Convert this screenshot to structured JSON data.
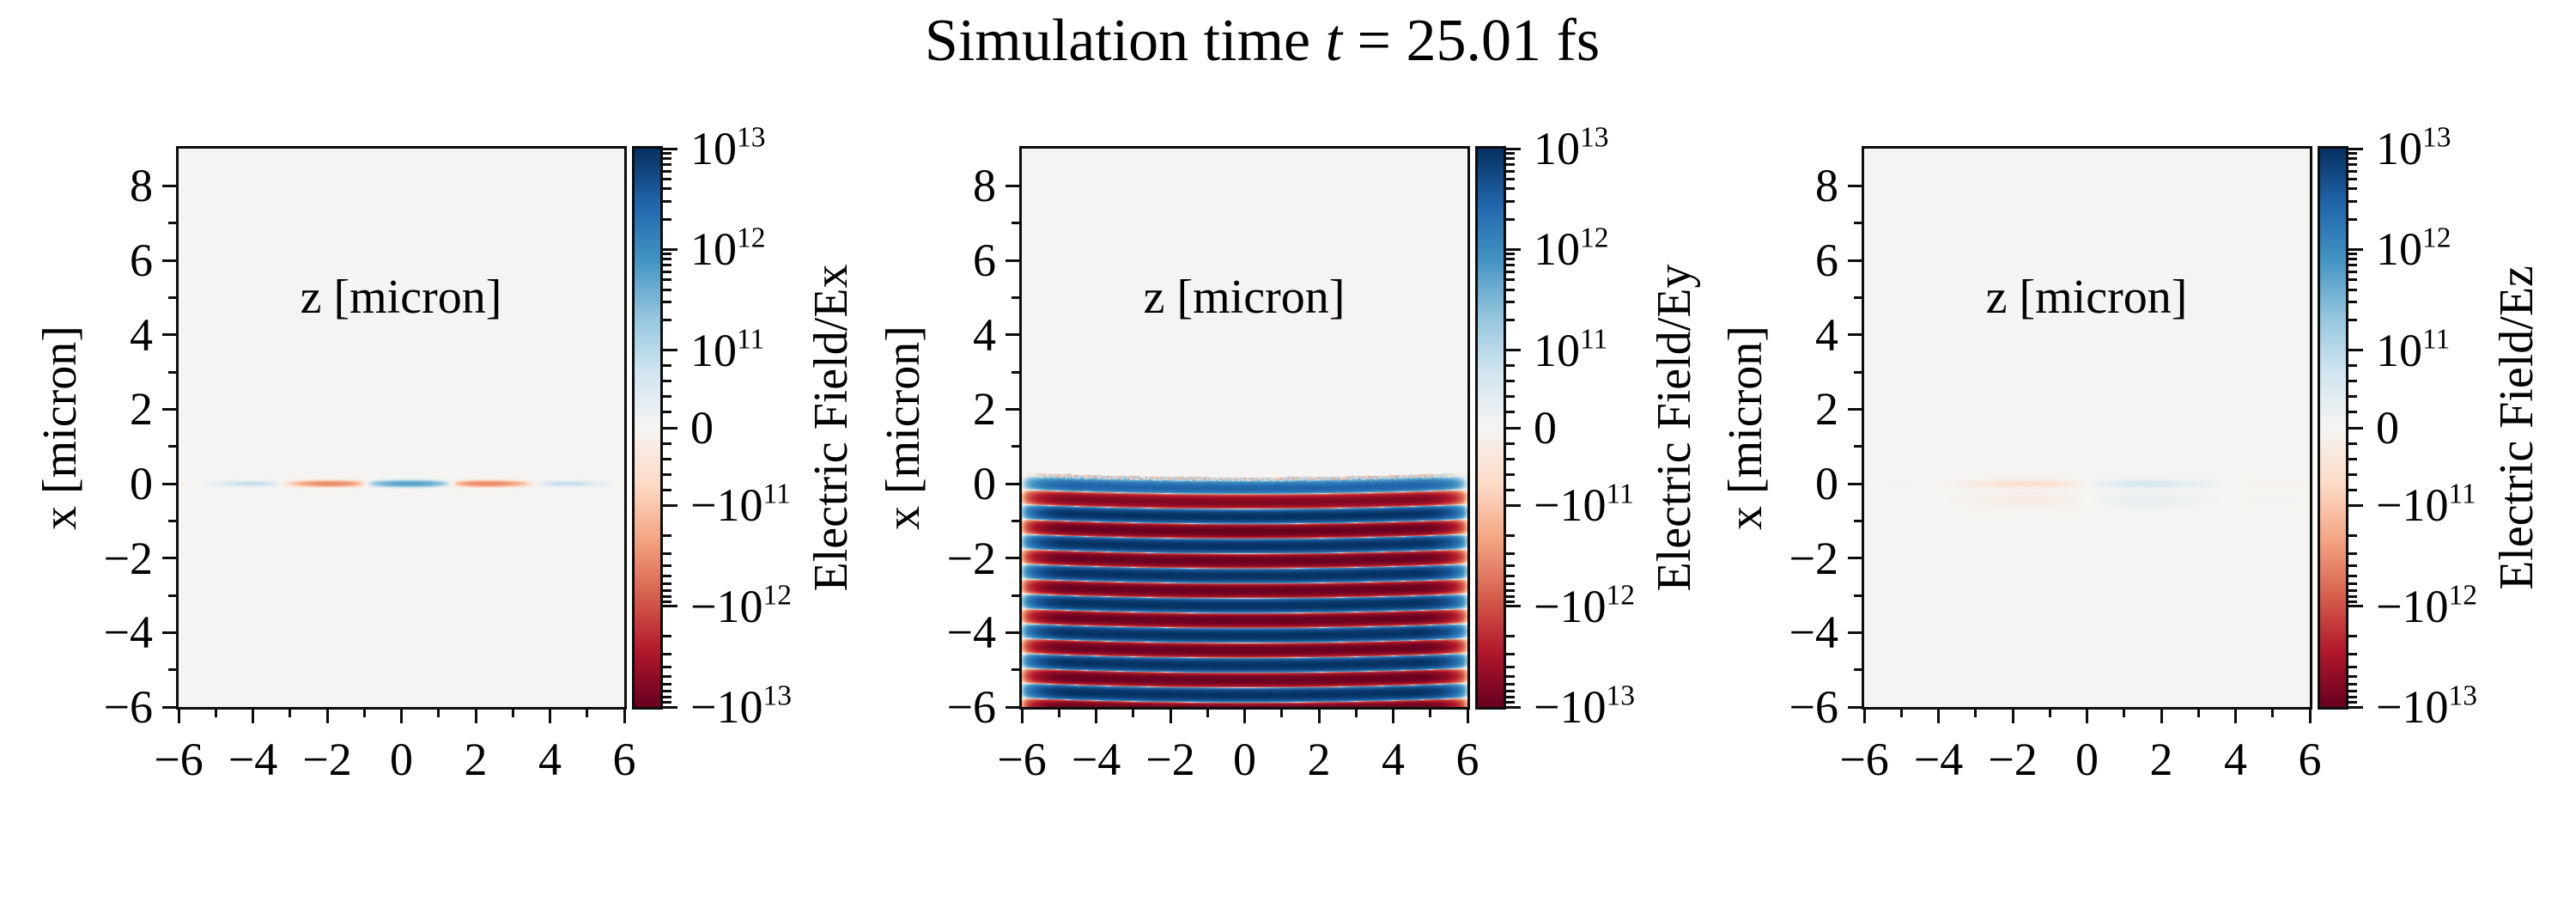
{
  "title": {
    "prefix": "Simulation time ",
    "variable": "t",
    "suffix": " = 25.01 fs"
  },
  "chart_data": {
    "type": "heatmap",
    "suptitle": "Simulation time t = 25.01 fs",
    "layout": "three horizontal pcolormesh subplots sharing axis ranges, each with its own symlog colorbar",
    "colormap": {
      "name": "RdBu",
      "stops_low_to_high": [
        "#67001f",
        "#b2182b",
        "#d6604d",
        "#f4a582",
        "#fddbc7",
        "#f5f4f2",
        "#d1e5f0",
        "#92c5de",
        "#4393c3",
        "#2166ac",
        "#053061"
      ]
    },
    "norm": {
      "type": "symlog",
      "vmin": -10000000000000.0,
      "vmax": 10000000000000.0,
      "linthresh": 100000000000.0,
      "linear_frac": 0.278,
      "decade_frac": 0.361
    },
    "axes": {
      "xlabel": "z [micron]",
      "ylabel": "x [micron]",
      "xlim": [
        -6,
        6
      ],
      "ylim": [
        -6,
        9
      ],
      "xticks": [
        {
          "v": -6,
          "label": "−6"
        },
        {
          "v": -4,
          "label": "−4"
        },
        {
          "v": -2,
          "label": "−2"
        },
        {
          "v": 0,
          "label": "0"
        },
        {
          "v": 2,
          "label": "2"
        },
        {
          "v": 4,
          "label": "4"
        },
        {
          "v": 6,
          "label": "6"
        }
      ],
      "xminor": [
        -5,
        -3,
        -1,
        1,
        3,
        5
      ],
      "yticks": [
        {
          "v": 8,
          "label": "8"
        },
        {
          "v": 6,
          "label": "6"
        },
        {
          "v": 4,
          "label": "4"
        },
        {
          "v": 2,
          "label": "2"
        },
        {
          "v": 0,
          "label": "0"
        },
        {
          "v": -2,
          "label": "−2"
        },
        {
          "v": -4,
          "label": "−4"
        },
        {
          "v": -6,
          "label": "−6"
        }
      ],
      "yminor": [
        9,
        7,
        5,
        3,
        1,
        -1,
        -3,
        -5
      ]
    },
    "colorbar_ticks": [
      {
        "frac": 0.0,
        "neg": false,
        "mant": "10",
        "exp": "13"
      },
      {
        "frac": 0.1805,
        "neg": false,
        "mant": "10",
        "exp": "12"
      },
      {
        "frac": 0.361,
        "neg": false,
        "mant": "10",
        "exp": "11"
      },
      {
        "frac": 0.5,
        "neg": false,
        "mant": "0",
        "exp": ""
      },
      {
        "frac": 0.639,
        "neg": true,
        "mant": "10",
        "exp": "11"
      },
      {
        "frac": 0.8195,
        "neg": true,
        "mant": "10",
        "exp": "12"
      },
      {
        "frac": 1.0,
        "neg": true,
        "mant": "10",
        "exp": "13"
      }
    ],
    "panels": [
      {
        "id": "Ex",
        "cbar_label": "Electric Field/Ex",
        "description": "Thin horizontal pulse line at x=0, z from about -5 to 4.5: blue center lobe with orange side lobes and faint blue tails, peak ~6e11",
        "field": {
          "type": "line_pulse",
          "amplitude": 600000000000.0,
          "wavelength_z": 4.6,
          "phase": 0,
          "z_center": 0.2,
          "sigma_z": 2.3,
          "x_center": 0,
          "sigma_x": 0.05
        }
      },
      {
        "id": "Ey",
        "cbar_label": "Electric Field/Ey",
        "description": "Laser pulse: horizontal stripes alternating +/- ~1e13 below x=0 down past x=-6, wavelength 0.8 micron along x, spanning z=-6..6 with fading ends and speckled top edge",
        "field": {
          "type": "stripes",
          "amplitude": 9500000000000.0,
          "wavelength_x": 0.8,
          "x_top": 0.12,
          "bow": 0.12,
          "rise": 1.0,
          "rise_pow": 0.8,
          "z_flat": 4.6,
          "z_floor": 0.05,
          "z_pow": 1.2,
          "noise": 300000000000.0
        }
      },
      {
        "id": "Ez",
        "cbar_label": "Electric Field/Ez",
        "description": "Very faint line at x=0: pale orange for z<0, pale blue for z>0, peak ~8e10, with weaker diffuse lobe just below",
        "field": {
          "type": "line_pulse",
          "amplitude": 85000000000.0,
          "wavelength_z": 8,
          "phase": -1.5708,
          "z_center": 0,
          "sigma_z": 2.4,
          "x_center": 0,
          "sigma_x": 0.07,
          "secondary": {
            "amplitude_scale": 0.35,
            "x_center": -0.45,
            "sigma_x": 0.16
          }
        }
      }
    ]
  }
}
